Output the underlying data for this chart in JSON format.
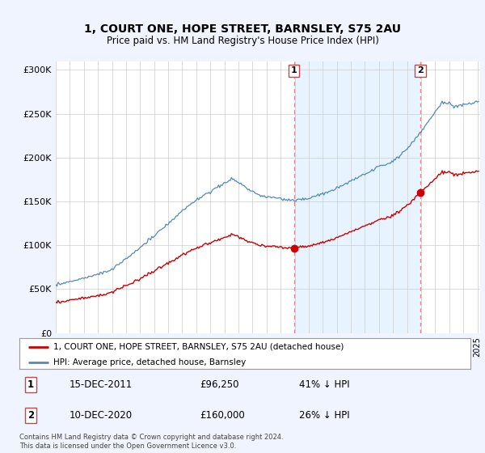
{
  "title": "1, COURT ONE, HOPE STREET, BARNSLEY, S75 2AU",
  "subtitle": "Price paid vs. HM Land Registry's House Price Index (HPI)",
  "legend_label_red": "1, COURT ONE, HOPE STREET, BARNSLEY, S75 2AU (detached house)",
  "legend_label_blue": "HPI: Average price, detached house, Barnsley",
  "annotation1_label": "1",
  "annotation1_date": "15-DEC-2011",
  "annotation1_price": "£96,250",
  "annotation1_pct": "41% ↓ HPI",
  "annotation2_label": "2",
  "annotation2_date": "10-DEC-2020",
  "annotation2_price": "£160,000",
  "annotation2_pct": "26% ↓ HPI",
  "footer": "Contains HM Land Registry data © Crown copyright and database right 2024.\nThis data is licensed under the Open Government Licence v3.0.",
  "red_color": "#cc0000",
  "blue_color": "#5588bb",
  "dashed_color": "#dd8888",
  "shade_color": "#ddeeff",
  "background_color": "#f0f4ff",
  "plot_bg_color": "#ffffff",
  "ylim": [
    0,
    310000
  ],
  "yticks": [
    0,
    50000,
    100000,
    150000,
    200000,
    250000,
    300000
  ],
  "xlim_start": 1995.5,
  "xlim_end": 2025.2,
  "marker1_x": 2011.96,
  "marker1_y": 96250,
  "marker2_x": 2020.95,
  "marker2_y": 160000,
  "vline1_x": 2011.96,
  "vline2_x": 2020.95
}
